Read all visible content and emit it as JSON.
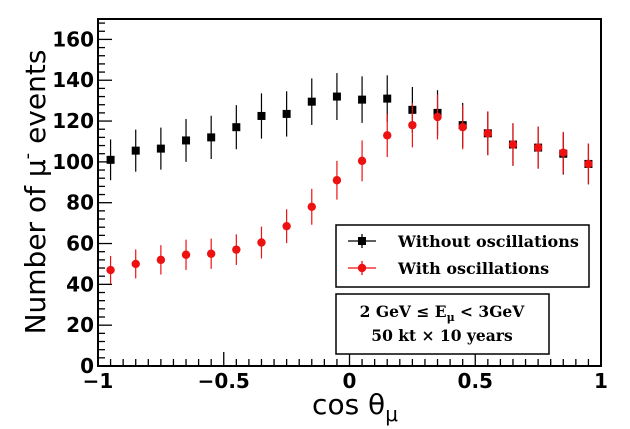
{
  "chart_data": {
    "type": "scatter",
    "title": "",
    "xlabel": "cos θ",
    "xlabel_sub": "μ",
    "ylabel": "Number of μ",
    "ylabel_sup": "-",
    "ylabel_tail": " events",
    "xlim": [
      -1,
      1
    ],
    "ylim": [
      0,
      170
    ],
    "x_ticks": [
      -1,
      -0.5,
      0,
      0.5,
      1
    ],
    "x_tick_labels": [
      "−1",
      "−0.5",
      "0",
      "0.5",
      "1"
    ],
    "y_ticks": [
      0,
      20,
      40,
      60,
      80,
      100,
      120,
      140,
      160
    ],
    "y_tick_labels": [
      "0",
      "20",
      "40",
      "60",
      "80",
      "100",
      "120",
      "140",
      "160"
    ],
    "grid": false,
    "legend_position": "lower-right",
    "series": [
      {
        "name": "Without oscillations",
        "color": "#000000",
        "marker": "square",
        "x": [
          -0.95,
          -0.85,
          -0.75,
          -0.65,
          -0.55,
          -0.45,
          -0.35,
          -0.25,
          -0.15,
          -0.05,
          0.05,
          0.15,
          0.25,
          0.35,
          0.45,
          0.55,
          0.65,
          0.75,
          0.85,
          0.95
        ],
        "values": [
          101,
          105.5,
          106.5,
          110.5,
          112,
          117,
          122.5,
          123.5,
          129.5,
          132,
          130.5,
          131,
          125.5,
          124,
          118,
          114,
          108.5,
          107,
          104,
          99
        ],
        "errors": [
          10,
          10.3,
          10.3,
          10.5,
          10.6,
          10.8,
          11.1,
          11.1,
          11.4,
          11.5,
          11.4,
          11.4,
          11.2,
          11.1,
          10.9,
          10.7,
          10.4,
          10.3,
          10.2,
          10
        ]
      },
      {
        "name": "With oscillations",
        "color": "#ee1111",
        "marker": "circle",
        "x": [
          -0.95,
          -0.85,
          -0.75,
          -0.65,
          -0.55,
          -0.45,
          -0.35,
          -0.25,
          -0.15,
          -0.05,
          0.05,
          0.15,
          0.25,
          0.35,
          0.45,
          0.55,
          0.65,
          0.75,
          0.85,
          0.95
        ],
        "values": [
          47,
          50,
          52,
          54.5,
          55,
          57,
          60.5,
          68.5,
          78,
          91,
          100.5,
          113,
          118,
          122,
          117,
          114,
          108.5,
          107,
          104.5,
          99
        ],
        "errors": [
          6.9,
          7.1,
          7.2,
          7.4,
          7.4,
          7.5,
          7.8,
          8.3,
          8.8,
          9.5,
          10,
          10.6,
          10.9,
          11,
          10.8,
          10.7,
          10.4,
          10.3,
          10.2,
          10
        ]
      }
    ],
    "annotations": [
      {
        "name": "energy-range",
        "parts": [
          "2 GeV  ≤ E",
          "μ",
          " < 3GeV"
        ]
      },
      {
        "name": "exposure",
        "parts": [
          "50 kt  × 10 years"
        ]
      }
    ]
  }
}
